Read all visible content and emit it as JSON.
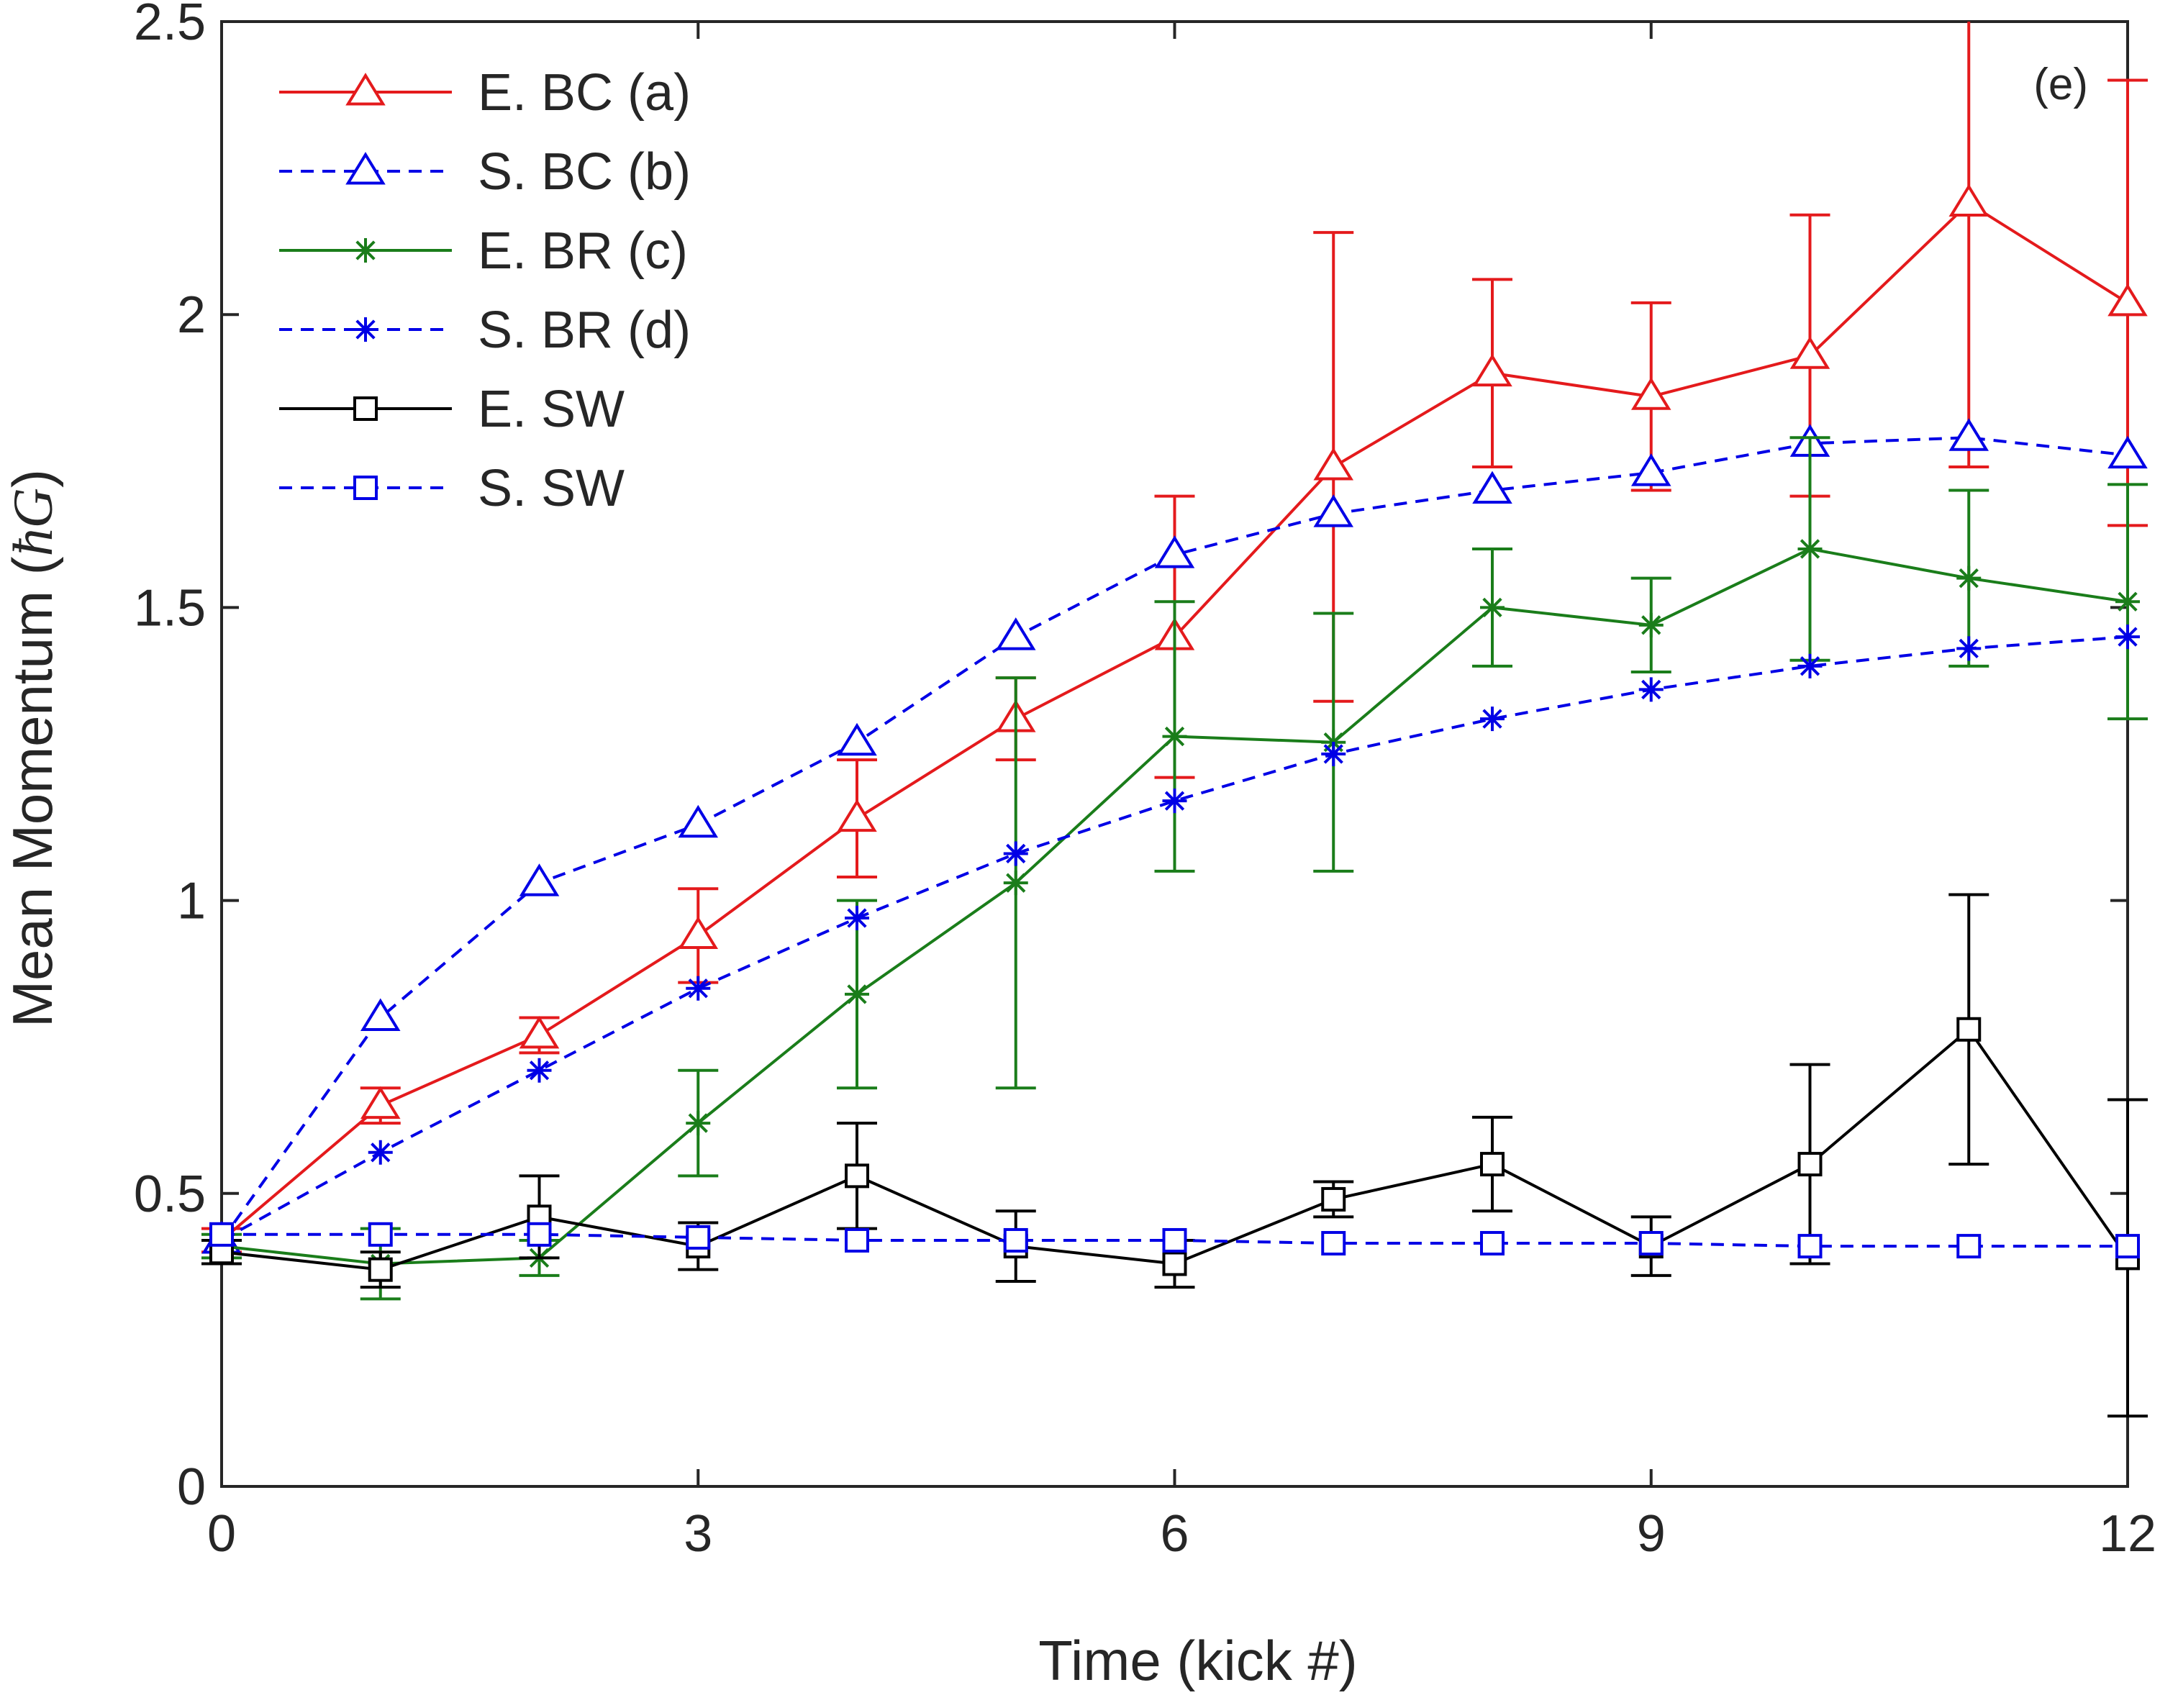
{
  "chart_data": {
    "type": "line",
    "panel_label": "(e)",
    "xlabel": "Time (kick #)",
    "ylabel_prefix": "Mean Momentum (",
    "ylabel_unit": "ħG",
    "ylabel_suffix": ")",
    "xlim": [
      0,
      12
    ],
    "ylim": [
      0,
      2.5
    ],
    "xticks": [
      0,
      3,
      6,
      9,
      12
    ],
    "xtick_labels": [
      "0",
      "3",
      "6",
      "9",
      "12"
    ],
    "yticks": [
      0,
      0.5,
      1,
      1.5,
      2,
      2.5
    ],
    "ytick_labels": [
      "0",
      "0.5",
      "1",
      "1.5",
      "2",
      "2.5"
    ],
    "grid": false,
    "legend_position": "top-left",
    "x": [
      0,
      1,
      2,
      3,
      4,
      5,
      6,
      7,
      8,
      9,
      10,
      11,
      12
    ],
    "series": [
      {
        "name": "E. BC (a)",
        "color": "#e41a1c",
        "line": "solid",
        "marker": "triangle",
        "values": [
          0.42,
          0.65,
          0.77,
          0.94,
          1.14,
          1.31,
          1.45,
          1.74,
          1.9,
          1.86,
          1.93,
          2.19,
          2.02
        ],
        "error": [
          0.02,
          0.03,
          0.03,
          0.08,
          0.1,
          0.07,
          0.24,
          0.4,
          0.16,
          0.16,
          0.24,
          0.45,
          0.38
        ]
      },
      {
        "name": "S. BC (b)",
        "color": "#0000e6",
        "line": "dashed",
        "marker": "triangle",
        "values": [
          0.42,
          0.8,
          1.03,
          1.13,
          1.27,
          1.45,
          1.59,
          1.66,
          1.7,
          1.73,
          1.78,
          1.79,
          1.76
        ]
      },
      {
        "name": "E. BR (c)",
        "color": "#1a7d1a",
        "line": "solid",
        "marker": "asterisk",
        "values": [
          0.41,
          0.38,
          0.39,
          0.62,
          0.84,
          1.03,
          1.28,
          1.27,
          1.5,
          1.47,
          1.6,
          1.55,
          1.51
        ],
        "error": [
          0.02,
          0.06,
          0.03,
          0.09,
          0.16,
          0.35,
          0.23,
          0.22,
          0.1,
          0.08,
          0.19,
          0.15,
          0.2
        ]
      },
      {
        "name": "S. BR (d)",
        "color": "#0000e6",
        "line": "dashed",
        "marker": "asterisk",
        "values": [
          0.42,
          0.57,
          0.71,
          0.85,
          0.97,
          1.08,
          1.17,
          1.25,
          1.31,
          1.36,
          1.4,
          1.43,
          1.45
        ]
      },
      {
        "name": "E. SW",
        "color": "#000000",
        "line": "solid",
        "marker": "square",
        "values": [
          0.4,
          0.37,
          0.46,
          0.41,
          0.53,
          0.41,
          0.38,
          0.49,
          0.55,
          0.41,
          0.55,
          0.78,
          0.39
        ],
        "error": [
          0.02,
          0.03,
          0.07,
          0.04,
          0.09,
          0.06,
          0.04,
          0.03,
          0.08,
          0.05,
          0.17,
          0.23,
          0.27
        ]
      },
      {
        "name": "S. SW",
        "color": "#0000e6",
        "line": "dashed",
        "marker": "square",
        "values": [
          0.43,
          0.43,
          0.43,
          0.425,
          0.42,
          0.42,
          0.42,
          0.415,
          0.415,
          0.415,
          0.41,
          0.41,
          0.41
        ]
      }
    ]
  }
}
